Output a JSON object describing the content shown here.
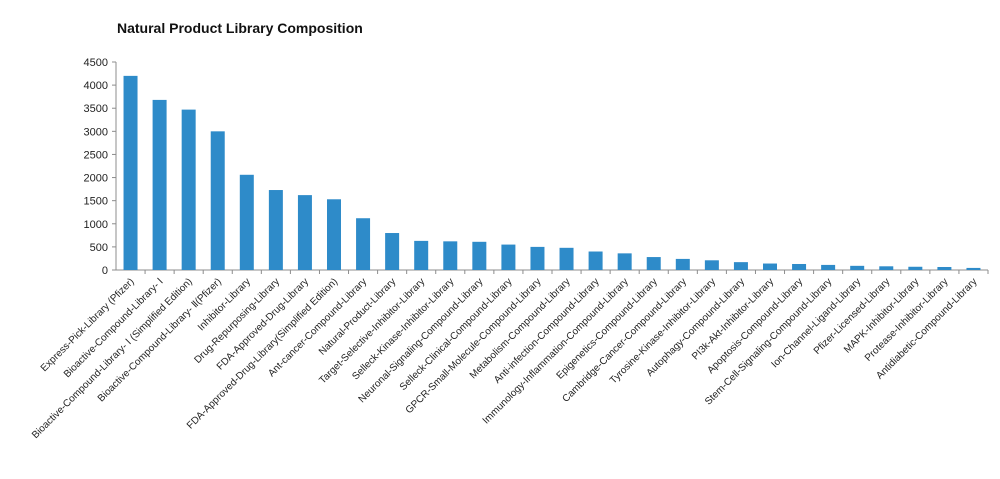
{
  "chart_data": {
    "type": "bar",
    "title": "Natural Product Library Composition",
    "xlabel": "",
    "ylabel": "",
    "ylim": [
      0,
      4500
    ],
    "yticks": [
      0,
      500,
      1000,
      1500,
      2000,
      2500,
      3000,
      3500,
      4000,
      4500
    ],
    "grid": false,
    "bar_color": "#2e8bc9",
    "categories": [
      "Express-Pick-Library (Pfizer)",
      "Bioactive-Compound-Library- Ⅰ",
      "Bioactive-Compound-Library- Ⅰ (Simplified Edition)",
      "Bioactive-Compound-Library- Ⅱ(Pfizer)",
      "Inhibitor-Library",
      "Drug-Repurposing-Library",
      "FDA-Approved-Drug-Library",
      "FDA-Approved-Drug-Library(Simplified Edition)",
      "Ant-cancer-Compound-Library",
      "Natural-Product-Library",
      "Target-Selective-Inhibitor-Library",
      "Selleck-Kinase-Inhibitor-Library",
      "Neuronal-Signaling-Compound-Library",
      "Selleck-Clinical-Compound-Library",
      "GPCR-Small-Molecule-Compound-Library",
      "Metabolism-Compound-Library",
      "Anti-infection-Compound-Library",
      "Immunology-Inflammation-Compound-Library",
      "Epigenetics-Compound-Library",
      "Cambridge-Cancer-Compound-Library",
      "Tyrosine-Kinase-Inhibitor-Library",
      "Autophagy-Compound-Library",
      "PI3k-Akt-Inhibitor-Library",
      "Apoptosis-Compound-Library",
      "Stem-Cell-Signaling-Compound-Library",
      "Ion-Channel-Ligand-Library",
      "Pfizer-Licensed-Library",
      "MAPK-Inhibitor-Library",
      "Protease-Inhibitor-Library",
      "Antidiabetic-Compound-Library"
    ],
    "values": [
      4200,
      3680,
      3470,
      3000,
      2060,
      1730,
      1620,
      1530,
      1120,
      800,
      630,
      620,
      610,
      550,
      500,
      480,
      400,
      360,
      280,
      240,
      210,
      170,
      140,
      130,
      110,
      90,
      80,
      70,
      65,
      45
    ]
  }
}
